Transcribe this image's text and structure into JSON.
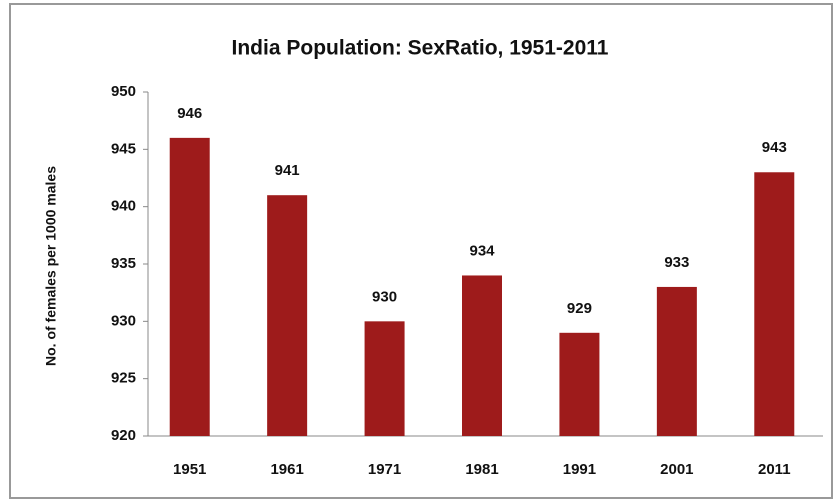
{
  "chart_data": {
    "type": "bar",
    "title": "India Population: SexRatio, 1951-2011",
    "y_label": "No. of females per 1000 males",
    "categories": [
      "1951",
      "1961",
      "1971",
      "1981",
      "1991",
      "2001",
      "2011"
    ],
    "values": [
      946,
      941,
      930,
      934,
      929,
      933,
      943
    ],
    "color": "#9e1b1b",
    "ylim": [
      920,
      950
    ],
    "yticks": [
      920,
      925,
      930,
      935,
      940,
      945,
      950
    ],
    "grid": false
  }
}
